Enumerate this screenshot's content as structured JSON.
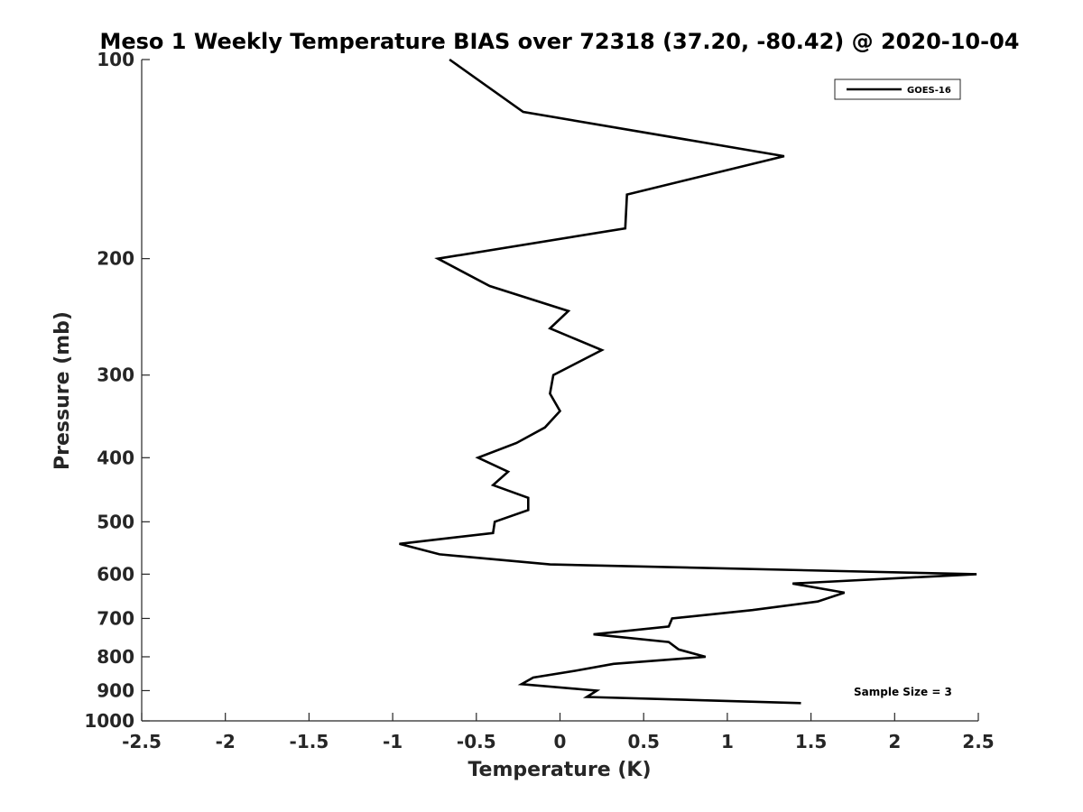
{
  "chart_data": {
    "type": "line",
    "title": "Meso 1 Weekly Temperature BIAS over 72318 (37.20, -80.42) @ 2020-10-04",
    "xlabel": "Temperature (K)",
    "ylabel": "Pressure (mb)",
    "xlim": [
      -2.5,
      2.5
    ],
    "ylim": [
      100,
      1000
    ],
    "y_scale": "log",
    "y_reversed": true,
    "x_ticks": [
      "-2.5",
      "-2",
      "-1.5",
      "-1",
      "-0.5",
      "0",
      "0.5",
      "1",
      "1.5",
      "2",
      "2.5"
    ],
    "y_ticks": [
      "100",
      "200",
      "300",
      "400",
      "500",
      "600",
      "700",
      "800",
      "900",
      "1000"
    ],
    "grid": false,
    "legend": {
      "position": "top-right",
      "entries": [
        "GOES-16"
      ]
    },
    "annotation": "Sample Size = 3",
    "series": [
      {
        "name": "GOES-16",
        "color": "#000000",
        "points": [
          [
            -0.66,
            100
          ],
          [
            -0.22,
            120
          ],
          [
            1.34,
            140
          ],
          [
            0.4,
            160
          ],
          [
            0.39,
            180
          ],
          [
            -0.73,
            200
          ],
          [
            -0.42,
            220
          ],
          [
            0.05,
            240
          ],
          [
            -0.06,
            255
          ],
          [
            0.25,
            275
          ],
          [
            -0.04,
            300
          ],
          [
            -0.06,
            320
          ],
          [
            0.0,
            340
          ],
          [
            -0.09,
            360
          ],
          [
            -0.26,
            380
          ],
          [
            -0.49,
            400
          ],
          [
            -0.31,
            420
          ],
          [
            -0.4,
            440
          ],
          [
            -0.19,
            460
          ],
          [
            -0.19,
            480
          ],
          [
            -0.39,
            500
          ],
          [
            -0.4,
            520
          ],
          [
            -0.96,
            540
          ],
          [
            -0.72,
            560
          ],
          [
            -0.06,
            580
          ],
          [
            2.49,
            600
          ],
          [
            1.39,
            620
          ],
          [
            1.7,
            640
          ],
          [
            1.54,
            660
          ],
          [
            1.15,
            680
          ],
          [
            0.67,
            700
          ],
          [
            0.65,
            720
          ],
          [
            0.2,
            740
          ],
          [
            0.65,
            760
          ],
          [
            0.71,
            780
          ],
          [
            0.87,
            800
          ],
          [
            0.32,
            820
          ],
          [
            0.09,
            840
          ],
          [
            -0.16,
            860
          ],
          [
            -0.23,
            880
          ],
          [
            0.22,
            900
          ],
          [
            0.16,
            920
          ],
          [
            1.44,
            940
          ]
        ]
      }
    ]
  }
}
